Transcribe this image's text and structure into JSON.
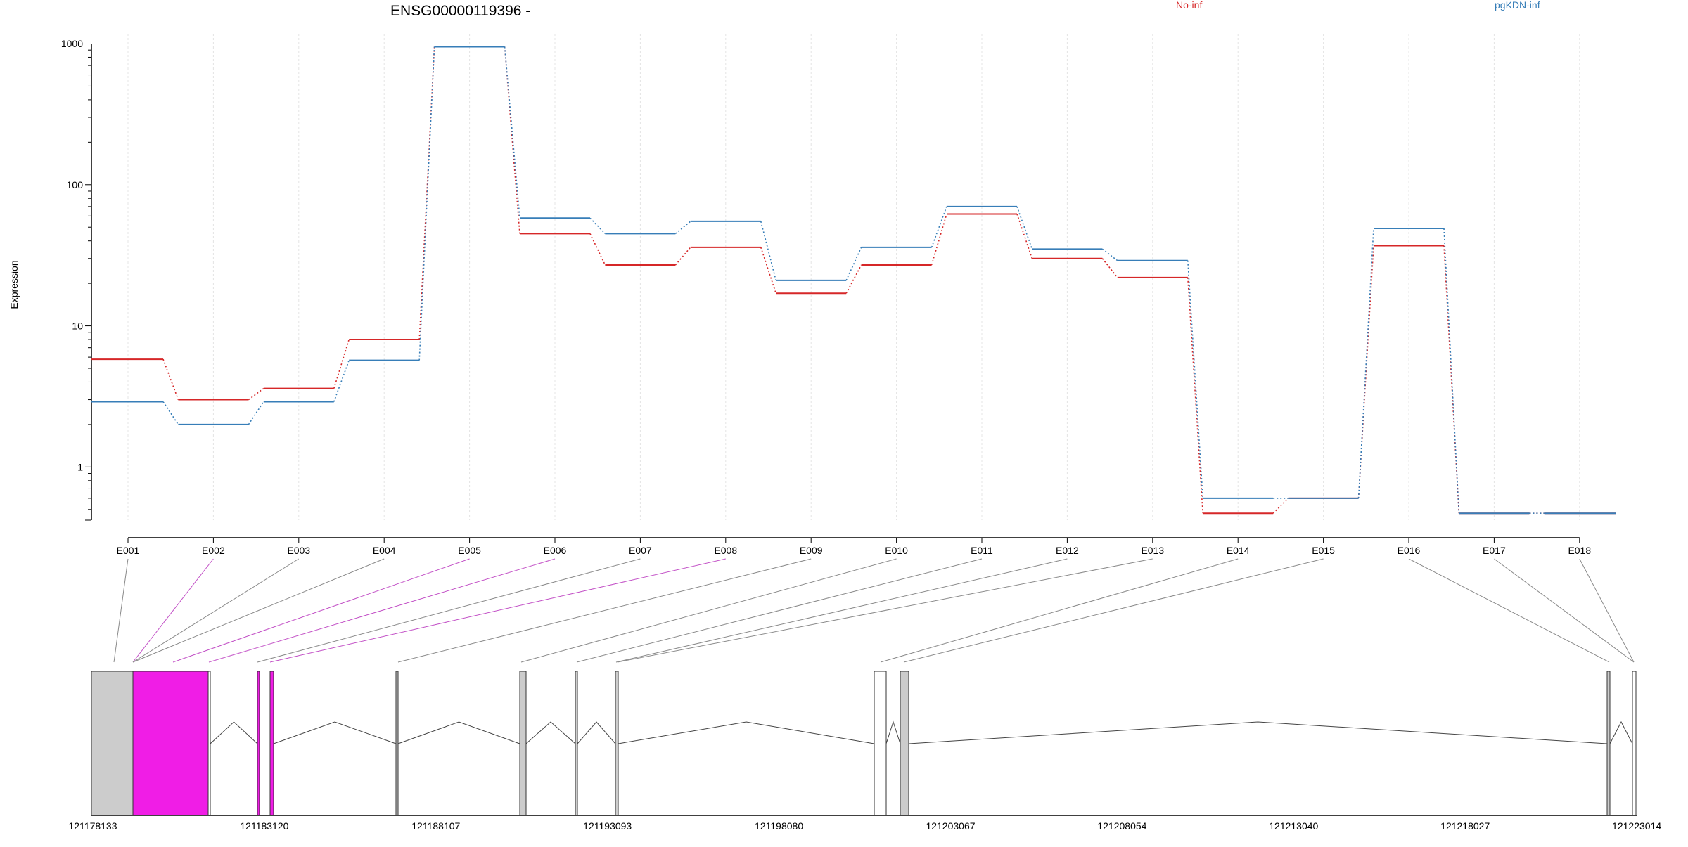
{
  "chart_data": {
    "type": "line",
    "title": "ENSG00000119396 -",
    "ylabel": "Expression",
    "yscale": "log",
    "ylim": [
      0.42,
      1000
    ],
    "yticks": [
      "1",
      "10",
      "100",
      "1000"
    ],
    "legend": [
      {
        "label": "No-inf",
        "color": "#d62728"
      },
      {
        "label": "pgKDN-inf",
        "color": "#377eb8"
      }
    ],
    "categories": [
      "E001",
      "E002",
      "E003",
      "E004",
      "E005",
      "E006",
      "E007",
      "E008",
      "E009",
      "E010",
      "E011",
      "E012",
      "E013",
      "E014",
      "E015",
      "E016",
      "E017",
      "E018"
    ],
    "series": [
      {
        "name": "No-inf",
        "color": "#d62728",
        "values": [
          5.8,
          3.0,
          3.6,
          8.0,
          950,
          45,
          27,
          36,
          17,
          27,
          62,
          30,
          22,
          0.47,
          0.6,
          37,
          0.47,
          0.47
        ]
      },
      {
        "name": "pgKDN-inf",
        "color": "#377eb8",
        "values": [
          2.9,
          2.0,
          2.9,
          5.7,
          950,
          58,
          45,
          55,
          21,
          36,
          70,
          35,
          29,
          0.6,
          0.6,
          49,
          0.47,
          0.47
        ]
      }
    ],
    "gene_model": {
      "coordinate_labels": [
        "121178133",
        "121183120",
        "121188107",
        "121193093",
        "121198080",
        "121203067",
        "121208054",
        "121213040",
        "121218027",
        "121223014"
      ],
      "highlight_color": "#f01de6",
      "box_color": "#cccccc",
      "highlighted_exons": [
        "E002",
        "E005",
        "E006",
        "E008"
      ]
    }
  }
}
